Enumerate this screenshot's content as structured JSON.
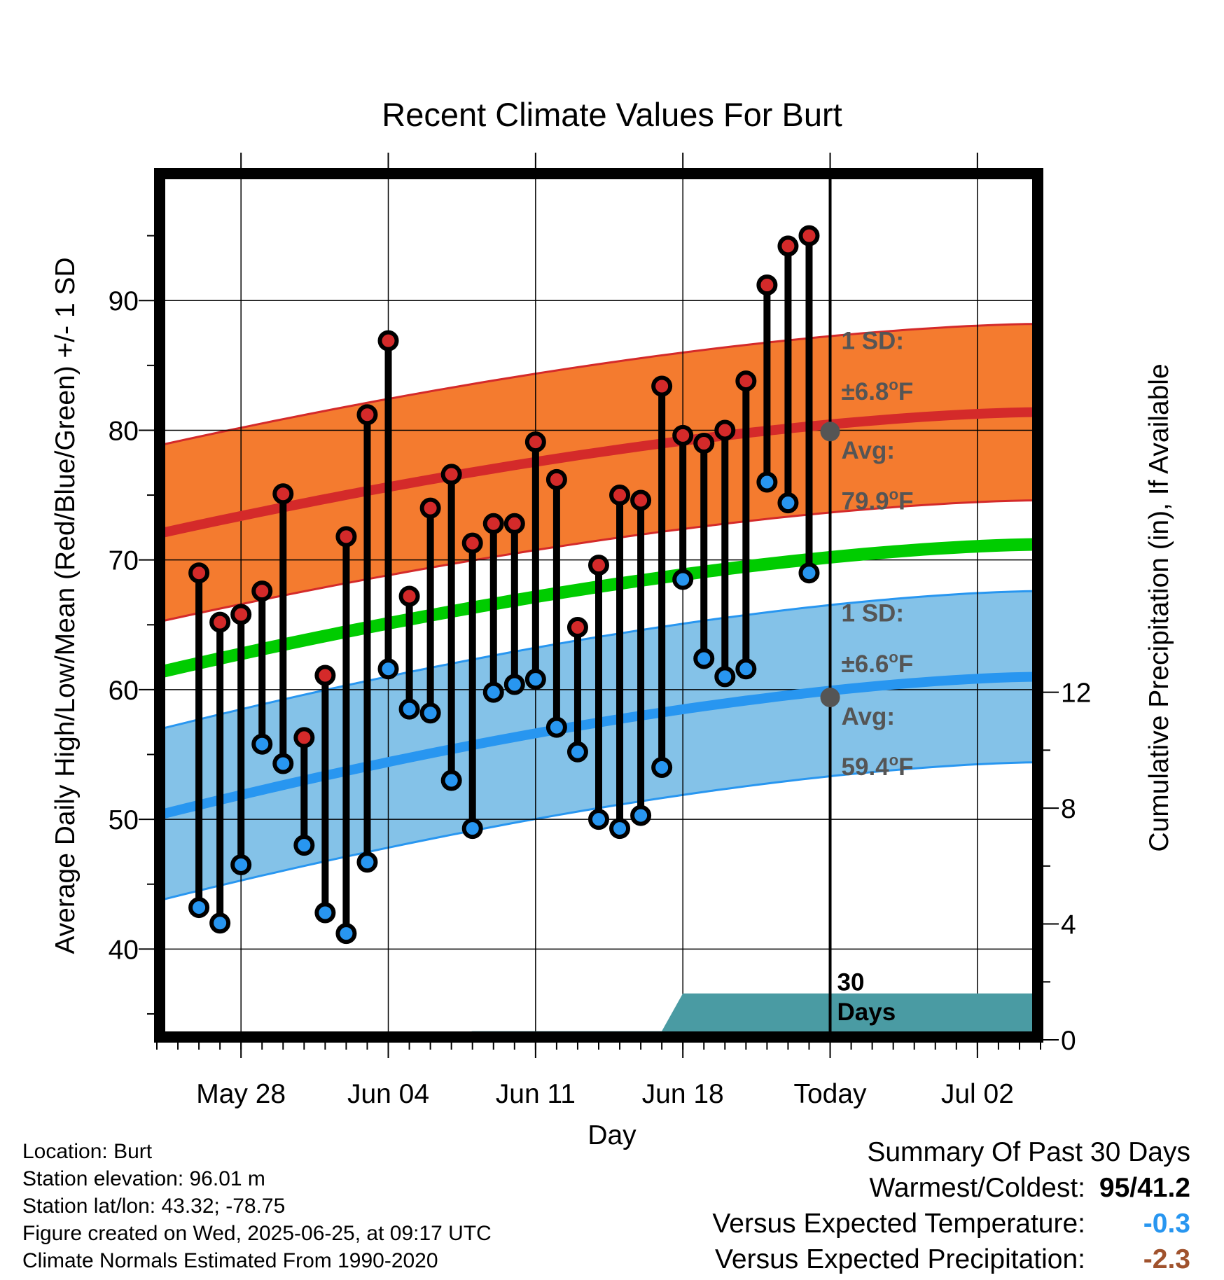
{
  "chart_data": {
    "type": "line",
    "title": "Recent Climate Values For Burt",
    "xlabel": "Day",
    "ylabel": "Average Daily High/Low/Mean (Red/Blue/Green) +/- 1 SD",
    "y2label": "Cumulative Precipitation (in), If Available",
    "ylim": [
      33,
      100
    ],
    "y_ticks": [
      40,
      50,
      60,
      70,
      80,
      90
    ],
    "y2lim": [
      0,
      30
    ],
    "y2_ticks": [
      0,
      4,
      8,
      12
    ],
    "xlim": [
      "2025-05-24",
      "2025-07-05"
    ],
    "x_ticks": [
      {
        "date": "2025-05-28",
        "label": "May 28"
      },
      {
        "date": "2025-06-04",
        "label": "Jun 04"
      },
      {
        "date": "2025-06-11",
        "label": "Jun 11"
      },
      {
        "date": "2025-06-18",
        "label": "Jun 18"
      },
      {
        "date": "2025-06-25",
        "label": "Today"
      },
      {
        "date": "2025-07-02",
        "label": "Jul 02"
      }
    ],
    "grid": true,
    "normals": {
      "high_mean": {
        "start": 72.0,
        "end": 81.4
      },
      "high_sd": 6.8,
      "low_mean": {
        "start": 50.3,
        "end": 61.0
      },
      "low_sd": 6.6,
      "mean": {
        "start": 61.3,
        "end": 71.2
      }
    },
    "dates": [
      "2025-05-26",
      "2025-05-27",
      "2025-05-28",
      "2025-05-29",
      "2025-05-30",
      "2025-05-31",
      "2025-06-01",
      "2025-06-02",
      "2025-06-03",
      "2025-06-04",
      "2025-06-05",
      "2025-06-06",
      "2025-06-07",
      "2025-06-08",
      "2025-06-09",
      "2025-06-10",
      "2025-06-11",
      "2025-06-12",
      "2025-06-13",
      "2025-06-14",
      "2025-06-15",
      "2025-06-16",
      "2025-06-17",
      "2025-06-18",
      "2025-06-19",
      "2025-06-20",
      "2025-06-21",
      "2025-06-22",
      "2025-06-23",
      "2025-06-24"
    ],
    "series": [
      {
        "name": "High",
        "color": "#d42a2a",
        "values": [
          69.0,
          65.2,
          65.8,
          67.6,
          75.1,
          56.3,
          61.1,
          71.8,
          81.2,
          86.9,
          67.2,
          74.0,
          76.6,
          71.3,
          72.8,
          72.8,
          79.1,
          76.2,
          64.8,
          69.6,
          75.0,
          74.6,
          83.4,
          79.6,
          79.0,
          80.0,
          83.8,
          91.2,
          94.2,
          95.0
        ]
      },
      {
        "name": "Low",
        "color": "#2896f0",
        "values": [
          43.2,
          42.0,
          46.5,
          55.8,
          54.3,
          48.0,
          42.8,
          41.2,
          46.7,
          61.6,
          58.5,
          58.2,
          53.0,
          49.3,
          59.8,
          60.4,
          60.8,
          57.1,
          55.2,
          50.0,
          49.3,
          50.3,
          54.0,
          68.5,
          62.4,
          61.0,
          61.6,
          76.0,
          74.4,
          69.0
        ]
      }
    ],
    "precipitation": [
      {
        "date": "2025-06-07",
        "value": 0.15
      },
      {
        "date": "2025-06-08",
        "value": 0.3
      },
      {
        "date": "2025-06-17",
        "value": 0.3
      },
      {
        "date": "2025-06-18",
        "value": 1.6
      },
      {
        "date": "2025-07-05",
        "value": 1.6
      }
    ],
    "annotations": {
      "high_sd_label": "1 SD:",
      "high_sd_value": "±6.8",
      "high_avg_label": "Avg:",
      "high_avg_value": "79.9",
      "high_avg_temp": 79.9,
      "low_sd_label": "1 SD:",
      "low_sd_value": "±6.6",
      "low_avg_label": "Avg:",
      "low_avg_value": "59.4",
      "low_avg_temp": 59.4,
      "unit_degree": "o",
      "unit_letter": "F",
      "days_label_1": "30",
      "days_label_2": "Days"
    },
    "colors": {
      "high_band": "#f47b2f",
      "high_line": "#d42a2a",
      "low_band": "#84c2e8",
      "low_line": "#2896f0",
      "mean_line": "#00cc00",
      "precip": "#4a9ba3",
      "annotation_text": "#555555",
      "avg_dot": "#555555"
    }
  },
  "info": {
    "location": "Location: Burt",
    "elevation": "Station elevation: 96.01 m",
    "latlon": "Station lat/lon: 43.32; -78.75",
    "created": "Figure created on Wed, 2025-06-25, at 09:17 UTC",
    "normals": "Climate Normals Estimated From 1990-2020"
  },
  "summary": {
    "title": "Summary Of Past 30 Days",
    "warm_cold_label": "Warmest/Coldest:",
    "warm_cold_value": "95/41.2",
    "temp_label": "Versus Expected Temperature:",
    "temp_value": "-0.3",
    "temp_color": "#2896f0",
    "precip_label": "Versus Expected Precipitation:",
    "precip_value": "-2.3",
    "precip_color": "#a0522d"
  }
}
